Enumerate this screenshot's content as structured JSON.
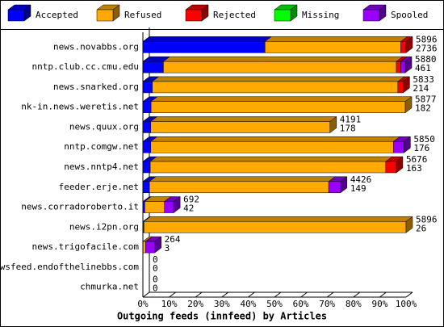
{
  "chart_data": {
    "type": "bar3d-stacked-horizontal",
    "title": "Outgoing feeds (innfeed) by Articles",
    "categories": [
      "news.novabbs.org",
      "nntp.club.cc.cmu.edu",
      "news.snarked.org",
      "nk-in.news.weretis.net",
      "news.quux.org",
      "nntp.comgw.net",
      "news.nntp4.net",
      "feeder.erje.net",
      "news.corradoroberto.it",
      "news.i2pn.org",
      "news.trigofacile.com",
      "newsfeed.endofthelinebbs.com",
      "chmurka.net"
    ],
    "series": [
      {
        "name": "Accepted",
        "color": "#0000ff",
        "values": [
          46.4,
          7.8,
          3.6,
          3.1,
          3.0,
          3.0,
          2.8,
          2.5,
          0.7,
          0.4,
          0.05,
          0,
          0
        ]
      },
      {
        "name": "Refused",
        "color": "#ffaa00",
        "values": [
          51.6,
          88.5,
          93.3,
          96.6,
          68.1,
          92.2,
          89.5,
          68.1,
          7.5,
          99.6,
          0.95,
          0,
          0
        ]
      },
      {
        "name": "Rejected",
        "color": "#ff0000",
        "values": [
          2.0,
          1.7,
          2.0,
          0,
          0,
          0,
          4.0,
          0,
          0,
          0,
          0,
          0,
          0
        ]
      },
      {
        "name": "Missing",
        "color": "#00ff00",
        "values": [
          0,
          0,
          0,
          0,
          0,
          0,
          0,
          0,
          0,
          0,
          0,
          0,
          0
        ]
      },
      {
        "name": "Spooled",
        "color": "#9900ff",
        "values": [
          0,
          1.7,
          0,
          0,
          0,
          4.0,
          0,
          4.5,
          3.5,
          0,
          3.5,
          0,
          0
        ]
      }
    ],
    "offered": [
      "5896",
      "5880",
      "5833",
      "5877",
      "4191",
      "5850",
      "5676",
      "4426",
      "692",
      "5896",
      "264",
      "0",
      "0"
    ],
    "accepted": [
      "2736",
      "461",
      "214",
      "182",
      "178",
      "176",
      "163",
      "149",
      "42",
      "26",
      "3",
      "0",
      "0"
    ],
    "xlim": [
      0,
      100
    ],
    "xticks": [
      {
        "value": 0,
        "label": "0%"
      },
      {
        "value": 10,
        "label": "10%"
      },
      {
        "value": 20,
        "label": "20%"
      },
      {
        "value": 30,
        "label": "30%"
      },
      {
        "value": 40,
        "label": "40%"
      },
      {
        "value": 50,
        "label": "50%"
      },
      {
        "value": 60,
        "label": "60%"
      },
      {
        "value": 70,
        "label": "70%"
      },
      {
        "value": 80,
        "label": "80%"
      },
      {
        "value": 90,
        "label": "90%"
      },
      {
        "value": 100,
        "label": "100%"
      }
    ]
  }
}
